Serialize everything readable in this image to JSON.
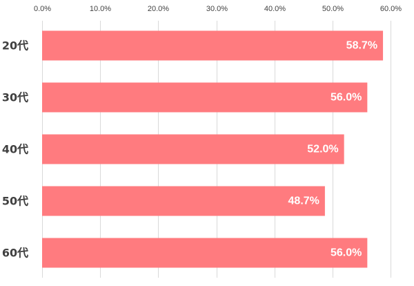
{
  "chart_data": {
    "type": "bar",
    "orientation": "horizontal",
    "categories": [
      "20代",
      "30代",
      "40代",
      "50代",
      "60代"
    ],
    "values": [
      58.7,
      56.0,
      52.0,
      48.7,
      56.0
    ],
    "value_labels": [
      "58.7%",
      "56.0%",
      "52.0%",
      "48.7%",
      "56.0%"
    ],
    "x_ticks": [
      "0.0%",
      "10.0%",
      "20.0%",
      "30.0%",
      "40.0%",
      "50.0%",
      "60.0%"
    ],
    "xlim": [
      0,
      60
    ],
    "x_axis_position": "top",
    "grid": true,
    "legend": "none",
    "title": "",
    "xlabel": "",
    "ylabel": "",
    "bar_color": "#ff7b7f"
  }
}
